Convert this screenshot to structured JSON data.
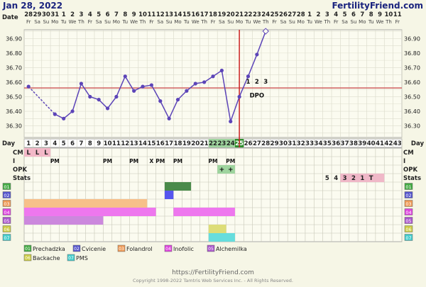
{
  "header": {
    "title": "Jan 28, 2022",
    "brand": "FertilityFriend.com"
  },
  "labels": {
    "date": "Date",
    "day": "Day",
    "cm": "CM",
    "i": "I",
    "opk": "OPK",
    "stats": "Stats",
    "dpo": "DPO"
  },
  "dates": [
    "28",
    "29",
    "30",
    "31",
    "1",
    "2",
    "3",
    "4",
    "5",
    "6",
    "7",
    "8",
    "9",
    "10",
    "11",
    "12",
    "13",
    "14",
    "15",
    "16",
    "17",
    "18",
    "19",
    "20",
    "21",
    "22",
    "23",
    "24",
    "25",
    "26",
    "27",
    "28",
    "1",
    "2",
    "3",
    "4",
    "5",
    "6",
    "7",
    "8",
    "9",
    "10",
    "11"
  ],
  "weekdays": [
    "Fr",
    "Sa",
    "Su",
    "Mo",
    "Tu",
    "We",
    "Th",
    "Fr",
    "Sa",
    "Su",
    "Mo",
    "Tu",
    "We",
    "Th",
    "Fr",
    "Sa",
    "Su",
    "Mo",
    "Tu",
    "We",
    "Th",
    "Fr",
    "Sa",
    "Su",
    "Mo",
    "Tu",
    "We",
    "Th",
    "Fr",
    "Sa",
    "Su",
    "Mo",
    "Tu",
    "We",
    "Th",
    "Fr",
    "Sa",
    "Su",
    "Mo",
    "Tu",
    "We",
    "Th",
    "Fr"
  ],
  "cycle_days": [
    "1",
    "2",
    "3",
    "4",
    "5",
    "6",
    "7",
    "8",
    "9",
    "10",
    "11",
    "12",
    "13",
    "14",
    "15",
    "16",
    "17",
    "18",
    "19",
    "20",
    "21",
    "22",
    "23",
    "24",
    "25",
    "26",
    "27",
    "28",
    "29",
    "30",
    "31",
    "32",
    "33",
    "34",
    "35",
    "36",
    "37",
    "38",
    "39",
    "40",
    "41",
    "42",
    "43"
  ],
  "dpo_numbers": [
    "1",
    "2",
    "3"
  ],
  "cm_values": [
    "L",
    "L",
    "L"
  ],
  "i_marks": [
    {
      "day": 4,
      "text": "PM"
    },
    {
      "day": 10,
      "text": "PM"
    },
    {
      "day": 13,
      "text": "PM"
    },
    {
      "day": 15,
      "text": "X"
    },
    {
      "day": 16,
      "text": "PM"
    },
    {
      "day": 18,
      "text": "PM"
    },
    {
      "day": 22,
      "text": "PM"
    },
    {
      "day": 24,
      "text": "PM"
    }
  ],
  "opk_marks": [
    {
      "day": 23,
      "text": "+"
    },
    {
      "day": 24,
      "text": "+"
    }
  ],
  "stats_marks": [
    {
      "day": 35,
      "text": "5"
    },
    {
      "day": 36,
      "text": "4"
    },
    {
      "day": 37,
      "text": "3"
    },
    {
      "day": 38,
      "text": "2"
    },
    {
      "day": 39,
      "text": "1"
    },
    {
      "day": 40,
      "text": "T"
    }
  ],
  "symptom_rows": [
    {
      "code": "01",
      "color": "#44aa44",
      "ranges": [
        [
          17,
          17,
          "#88dd88"
        ],
        [
          17,
          19,
          "#4a8a4a"
        ]
      ]
    },
    {
      "code": "02",
      "color": "#5555cc",
      "ranges": [
        [
          17,
          17,
          "#5555ee"
        ]
      ]
    },
    {
      "code": "03",
      "color": "#ee9955",
      "ranges": [
        [
          1,
          13,
          "#f7c08a"
        ],
        [
          14,
          14,
          "#f7c08a"
        ]
      ]
    },
    {
      "code": "04",
      "color": "#dd44dd",
      "ranges": [
        [
          1,
          15,
          "#ee77ee"
        ],
        [
          18,
          24,
          "#ee77ee"
        ]
      ]
    },
    {
      "code": "05",
      "color": "#aa55cc",
      "ranges": [
        [
          1,
          9,
          "#cc88dd"
        ]
      ]
    },
    {
      "code": "06",
      "color": "#cccc44",
      "ranges": [
        [
          22,
          23,
          "#dddd77"
        ]
      ]
    },
    {
      "code": "07",
      "color": "#44cccc",
      "ranges": [
        [
          22,
          24,
          "#66dddd"
        ]
      ]
    }
  ],
  "legend": [
    {
      "code": "01",
      "label": "Prechadzka",
      "color": "#44aa44"
    },
    {
      "code": "02",
      "label": "Cvicenie",
      "color": "#5555cc"
    },
    {
      "code": "03",
      "label": "Folandrol",
      "color": "#ee9955"
    },
    {
      "code": "04",
      "label": "Inofolic",
      "color": "#dd44dd"
    },
    {
      "code": "05",
      "label": "Alchemilka",
      "color": "#aa55cc"
    },
    {
      "code": "06",
      "label": "Backache",
      "color": "#cccc44"
    },
    {
      "code": "07",
      "label": "PMS",
      "color": "#44cccc"
    }
  ],
  "chart_data": {
    "type": "line",
    "x": [
      1,
      4,
      5,
      6,
      7,
      8,
      9,
      10,
      11,
      12,
      13,
      14,
      15,
      16,
      17,
      18,
      19,
      20,
      21,
      22,
      23,
      24,
      25,
      26,
      27
    ],
    "y": [
      36.57,
      36.38,
      36.35,
      36.4,
      36.59,
      36.5,
      36.48,
      36.42,
      36.5,
      36.64,
      36.54,
      36.57,
      36.58,
      36.47,
      36.35,
      36.48,
      36.54,
      36.59,
      36.6,
      36.64,
      36.68,
      36.33,
      36.5,
      36.64,
      36.79
    ],
    "open_points": [
      {
        "x": 28,
        "y": 36.95
      }
    ],
    "dashed_segment": [
      1,
      4
    ],
    "y_ticks": [
      "36.90",
      "36.80",
      "36.70",
      "36.60",
      "36.50",
      "36.40",
      "36.30"
    ],
    "ylim": [
      36.22,
      36.96
    ],
    "coverline": 36.56,
    "ovulation_day": 25,
    "colors": {
      "line": "#5c44b8",
      "coverline": "#d06060",
      "ovulation": "#cc2222"
    }
  },
  "footer": {
    "url": "https://FertilityFriend.com",
    "copyright": "Copyright 1998-2022 Tamtris Web Services Inc. - All Rights Reserved."
  }
}
